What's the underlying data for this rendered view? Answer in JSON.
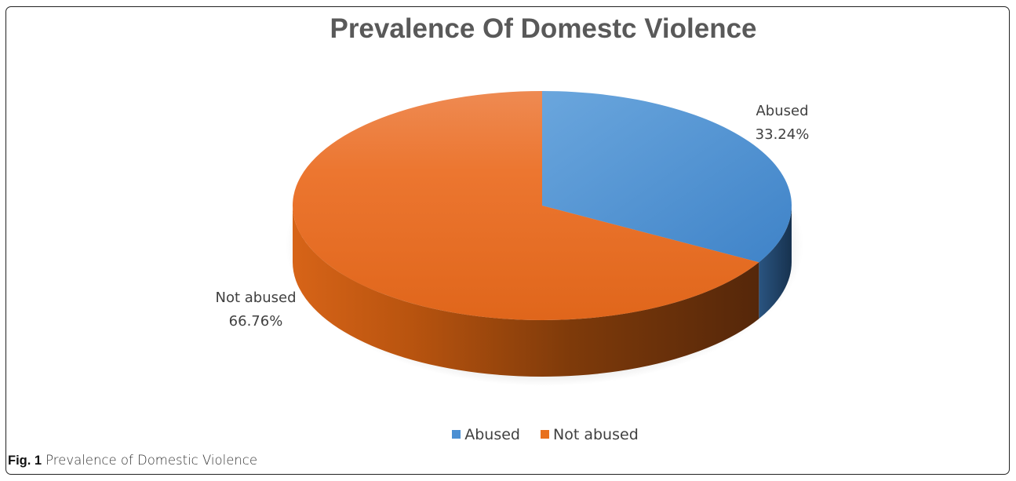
{
  "chart_data": {
    "type": "pie",
    "title": "Prevalence Of Domestc Violence",
    "categories": [
      "Abused",
      "Not abused"
    ],
    "values": [
      33.24,
      66.76
    ],
    "data_labels": [
      "33.24%",
      "66.76%"
    ],
    "colors": [
      "#4b8fd3",
      "#e8701d"
    ],
    "style": "3d",
    "legend_position": "bottom"
  },
  "legend": [
    {
      "label": "Abused",
      "color": "#4b8fd3"
    },
    {
      "label": "Not abused",
      "color": "#e8701d"
    }
  ],
  "caption": {
    "label": "Fig. 1",
    "text": "Prevalence of Domestic Violence"
  }
}
